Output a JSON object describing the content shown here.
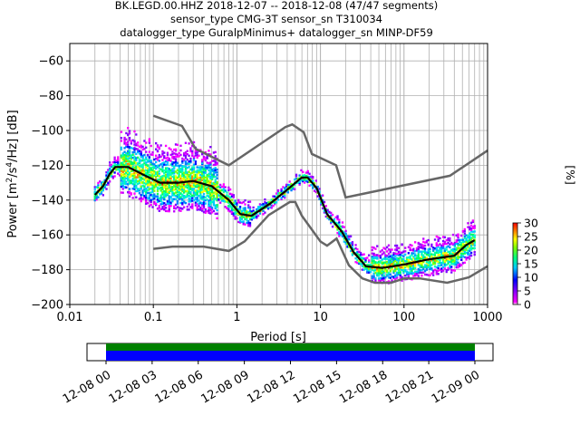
{
  "title": {
    "line1": "BK.LEGD.00.HHZ   2018-12-07 -- 2018-12-08  (47/47 segments)",
    "line2": "sensor_type CMG-3T sensor_sn T310034",
    "line3": "datalogger_type GuralpMinimus+ datalogger_sn MINP-DF59"
  },
  "chart_data": [
    {
      "type": "heatmap",
      "title": "BK.LEGD.00.HHZ   2018-12-07 -- 2018-12-08  (47/47 segments)",
      "xlabel": "Period [s]",
      "ylabel": "Power [m²/s⁴/Hz] [dB]",
      "xscale": "log",
      "xlim": [
        0.01,
        1000
      ],
      "ylim": [
        -200,
        -50
      ],
      "x_ticks": [
        {
          "value": 0.01,
          "label": "0.01"
        },
        {
          "value": 0.1,
          "label": "0.1"
        },
        {
          "value": 1,
          "label": "1"
        },
        {
          "value": 10,
          "label": "10"
        },
        {
          "value": 100,
          "label": "100"
        },
        {
          "value": 1000,
          "label": "1000"
        }
      ],
      "y_ticks": [
        {
          "value": -60,
          "label": "−60"
        },
        {
          "value": -80,
          "label": "−80"
        },
        {
          "value": -100,
          "label": "−100"
        },
        {
          "value": -120,
          "label": "−120"
        },
        {
          "value": -140,
          "label": "−140"
        },
        {
          "value": -160,
          "label": "−160"
        },
        {
          "value": -180,
          "label": "−180"
        },
        {
          "value": -200,
          "label": "−200"
        }
      ],
      "grid": true,
      "high_noise_model": [
        [
          0.1,
          -91.5
        ],
        [
          0.22,
          -97.4
        ],
        [
          0.32,
          -110.5
        ],
        [
          0.8,
          -120
        ],
        [
          3.8,
          -98
        ],
        [
          4.6,
          -96.5
        ],
        [
          6.3,
          -101
        ],
        [
          7.9,
          -113.5
        ],
        [
          15.4,
          -120
        ],
        [
          20,
          -138.5
        ],
        [
          354.8,
          -126
        ],
        [
          1000,
          -111.5
        ]
      ],
      "low_noise_model": [
        [
          0.1,
          -168
        ],
        [
          0.17,
          -166.7
        ],
        [
          0.4,
          -166.7
        ],
        [
          0.8,
          -169.2
        ],
        [
          1.24,
          -163.7
        ],
        [
          2.4,
          -148.6
        ],
        [
          4.3,
          -141.1
        ],
        [
          5,
          -141.1
        ],
        [
          6,
          -149
        ],
        [
          10,
          -163.8
        ],
        [
          12,
          -166.2
        ],
        [
          15.6,
          -162.1
        ],
        [
          21.9,
          -177.5
        ],
        [
          31.6,
          -185
        ],
        [
          45,
          -187.5
        ],
        [
          70,
          -187.5
        ],
        [
          101,
          -185
        ],
        [
          154,
          -185
        ],
        [
          328,
          -187.5
        ],
        [
          600,
          -184.4
        ],
        [
          1000,
          -178
        ]
      ],
      "median": [
        [
          0.02,
          -137
        ],
        [
          0.025,
          -132
        ],
        [
          0.03,
          -125
        ],
        [
          0.035,
          -121
        ],
        [
          0.05,
          -121
        ],
        [
          0.08,
          -126
        ],
        [
          0.12,
          -130
        ],
        [
          0.2,
          -130
        ],
        [
          0.3,
          -129
        ],
        [
          0.5,
          -132
        ],
        [
          0.8,
          -140
        ],
        [
          1.1,
          -148
        ],
        [
          1.5,
          -149
        ],
        [
          2.5,
          -142
        ],
        [
          4,
          -134
        ],
        [
          6,
          -127
        ],
        [
          7,
          -127
        ],
        [
          9,
          -133
        ],
        [
          12,
          -148
        ],
        [
          18,
          -158
        ],
        [
          25,
          -170
        ],
        [
          35,
          -178
        ],
        [
          55,
          -179
        ],
        [
          100,
          -177
        ],
        [
          200,
          -174
        ],
        [
          400,
          -172
        ],
        [
          550,
          -166
        ],
        [
          700,
          -163
        ]
      ],
      "colorbar": {
        "label": "[%]",
        "min": 0,
        "max": 30,
        "ticks": [
          0,
          5,
          10,
          15,
          20,
          25,
          30
        ]
      }
    },
    {
      "type": "bar",
      "title": "",
      "xlabel": "",
      "ylabel": "",
      "description_of_series": "data availability bar",
      "x_ticks": [
        "12-08 00",
        "12-08 03",
        "12-08 06",
        "12-08 09",
        "12-08 12",
        "12-08 15",
        "12-08 18",
        "12-08 21",
        "12-09 00"
      ],
      "coverage": {
        "start": "12-08 00",
        "end": "12-09 00",
        "colors": [
          "#008000",
          "#0000ff"
        ]
      }
    }
  ]
}
